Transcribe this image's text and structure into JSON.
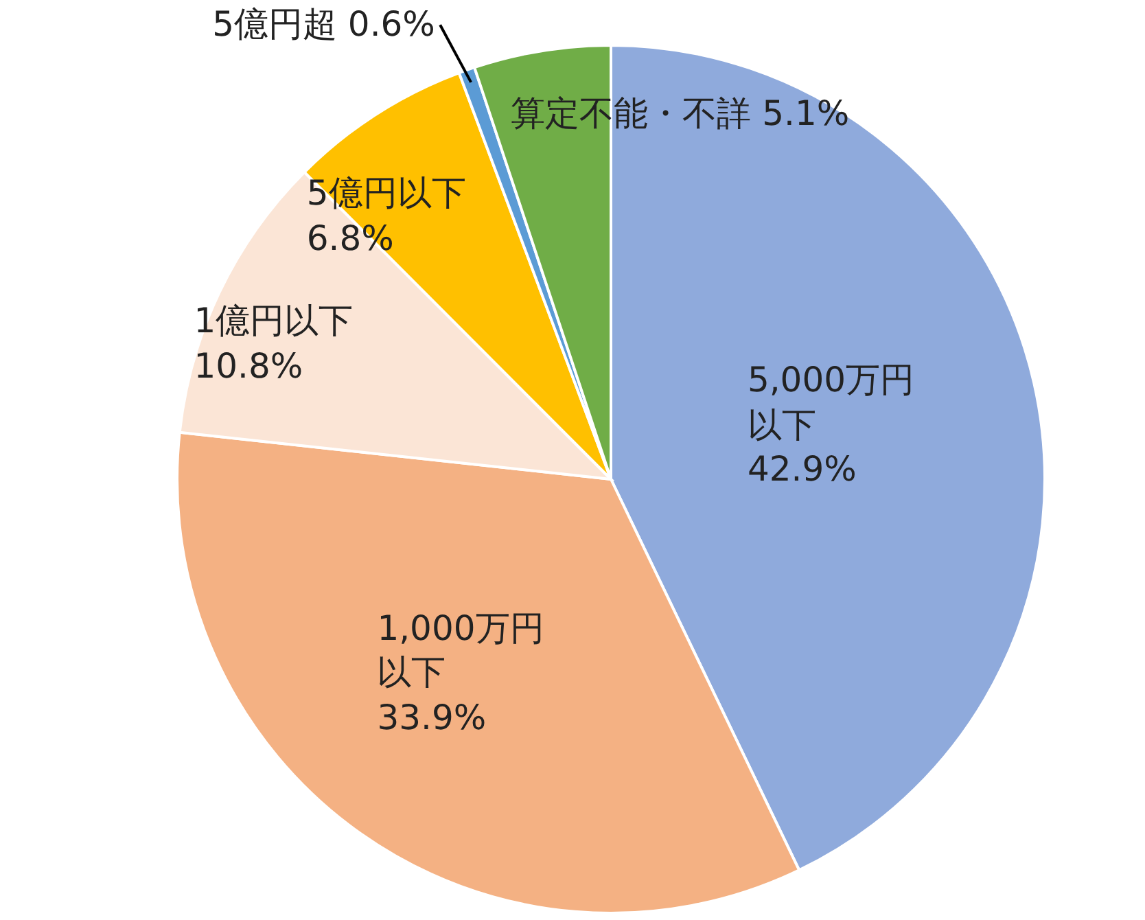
{
  "chart_data": {
    "type": "pie",
    "categories": [
      "5,000万円以下",
      "1,000万円以下",
      "1億円以下",
      "5億円以下",
      "5億円超",
      "算定不能・不詳"
    ],
    "values": [
      42.9,
      33.9,
      10.8,
      6.8,
      0.6,
      5.1
    ],
    "value_labels": [
      "42.9%",
      "33.9%",
      "10.8%",
      "6.8%",
      "0.6%",
      "5.1%"
    ],
    "colors": [
      "#8faadc",
      "#f4b183",
      "#fbe5d6",
      "#ffc000",
      "#5b9bd5",
      "#70ad47"
    ]
  }
}
